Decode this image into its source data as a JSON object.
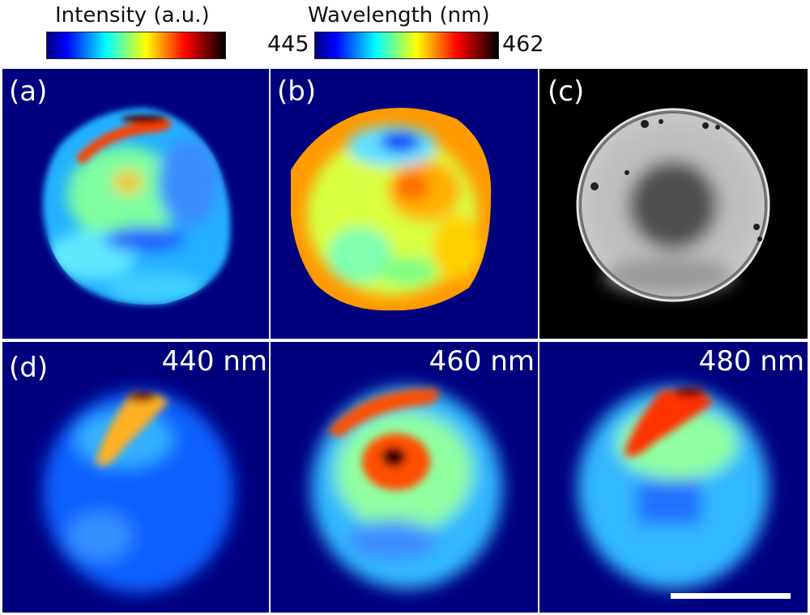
{
  "colorbars": {
    "intensity": {
      "title": "Intensity (a.u.)"
    },
    "wavelength": {
      "title": "Wavelength (nm)",
      "min_label": "445",
      "max_label": "462"
    }
  },
  "panels": {
    "a": {
      "label": "(a)"
    },
    "b": {
      "label": "(b)"
    },
    "c": {
      "label": "(c)"
    },
    "d": {
      "label": "(d)"
    }
  },
  "wavelength_panels": [
    {
      "label": "440 nm"
    },
    {
      "label": "460 nm"
    },
    {
      "label": "480 nm"
    }
  ],
  "colors": {
    "background": "#00007f",
    "jet": [
      "#00007f",
      "#0000ff",
      "#007fff",
      "#00ffff",
      "#7fff7f",
      "#ffff00",
      "#ff7f00",
      "#ff0000",
      "#7f0000",
      "#000000"
    ]
  }
}
